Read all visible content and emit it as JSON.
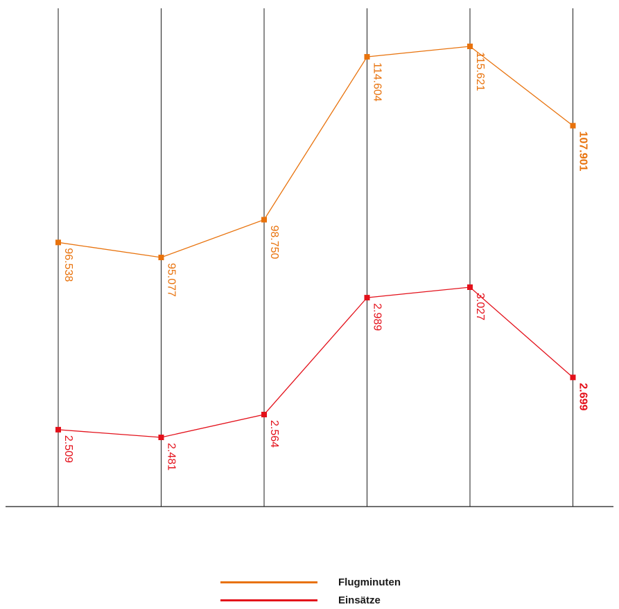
{
  "chart_data": {
    "type": "line",
    "categories": [
      "",
      "",
      "",
      "",
      "",
      ""
    ],
    "series": [
      {
        "name": "Flugminuten",
        "color": "#e8720c",
        "values": [
          96538,
          95077,
          98750,
          114604,
          115621,
          107901
        ],
        "labels": [
          "96.538",
          "95.077",
          "98.750",
          "114.604",
          "115.621",
          "107.901"
        ]
      },
      {
        "name": "Einsätze",
        "color": "#e3101a",
        "values": [
          2509,
          2481,
          2564,
          2989,
          3027,
          2699
        ],
        "labels": [
          "2.509",
          "2.481",
          "2.564",
          "2.989",
          "3.027",
          "2.699"
        ]
      }
    ],
    "last_label_bold": true,
    "grid": "vertical",
    "legend_position": "bottom-center"
  }
}
